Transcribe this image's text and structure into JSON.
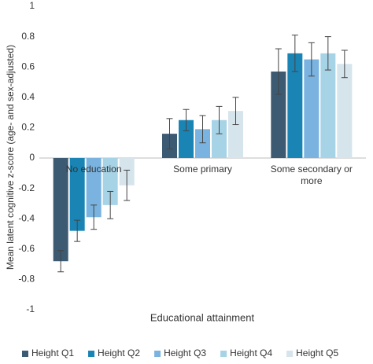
{
  "chart_data": {
    "type": "bar",
    "y_label": "Mean latent cognitive z-score (age- and sex-adjusted)",
    "x_label": "Educational attainment",
    "categories": [
      "No education",
      "Some primary",
      "Some secondary or more"
    ],
    "series": [
      {
        "name": "Height Q1",
        "color": "#3d5a73",
        "values": [
          -0.68,
          0.16,
          0.57
        ],
        "errors": [
          0.07,
          0.1,
          0.15
        ]
      },
      {
        "name": "Height Q2",
        "color": "#1a85b4",
        "values": [
          -0.48,
          0.25,
          0.69
        ],
        "errors": [
          0.07,
          0.07,
          0.12
        ]
      },
      {
        "name": "Height Q3",
        "color": "#7ab3e0",
        "values": [
          -0.39,
          0.19,
          0.65
        ],
        "errors": [
          0.08,
          0.09,
          0.11
        ]
      },
      {
        "name": "Height Q4",
        "color": "#a7d3e6",
        "values": [
          -0.31,
          0.25,
          0.69
        ],
        "errors": [
          0.09,
          0.09,
          0.11
        ]
      },
      {
        "name": "Height Q5",
        "color": "#d6e4ec",
        "values": [
          -0.18,
          0.31,
          0.62
        ],
        "errors": [
          0.1,
          0.09,
          0.09
        ]
      }
    ],
    "ylim": [
      -1,
      1
    ],
    "yticks": [
      -1,
      -0.8,
      -0.6,
      -0.4,
      -0.2,
      0,
      0.2,
      0.4,
      0.6,
      0.8,
      1
    ],
    "grid": false,
    "legend": "bottom"
  }
}
